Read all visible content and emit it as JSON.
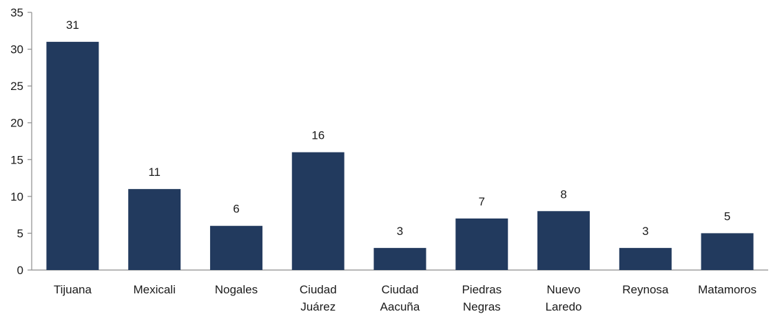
{
  "chart_data": {
    "type": "bar",
    "title": "",
    "xlabel": "",
    "ylabel": "",
    "categories": [
      [
        "Tijuana"
      ],
      [
        "Mexicali"
      ],
      [
        "Nogales"
      ],
      [
        "Ciudad",
        "Juárez"
      ],
      [
        "Ciudad",
        "Aacuña"
      ],
      [
        "Piedras",
        "Negras"
      ],
      [
        "Nuevo",
        "Laredo"
      ],
      [
        "Reynosa"
      ],
      [
        "Matamoros"
      ]
    ],
    "values": [
      31,
      11,
      6,
      16,
      3,
      7,
      8,
      3,
      5
    ],
    "ylim": [
      0,
      35
    ],
    "yticks": [
      0,
      5,
      10,
      15,
      20,
      25,
      30,
      35
    ],
    "grid": false,
    "data_labels": true,
    "bar_color": "#223a5e",
    "axis_color": "#8c8c8c"
  }
}
